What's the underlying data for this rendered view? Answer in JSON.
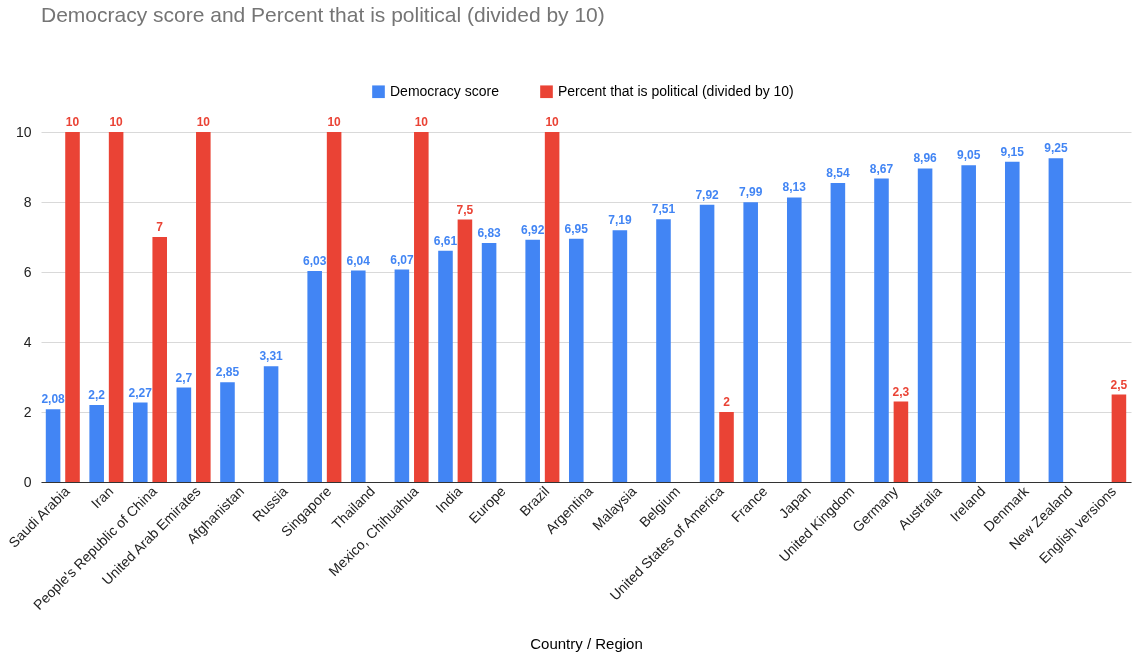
{
  "chart_data": {
    "type": "bar",
    "title": "Democracy score and Percent that is political (divided by 10)",
    "xlabel": "Country / Region",
    "categories": [
      "Saudi Arabia",
      "Iran",
      "People's Republic of China",
      "United Arab Emirates",
      "Afghanistan",
      "Russia",
      "Singapore",
      "Thailand",
      "Mexico, Chihuahua",
      "India",
      "Europe",
      "Brazil",
      "Argentina",
      "Malaysia",
      "Belgium",
      "United States of America",
      "France",
      "Japan",
      "United Kingdom",
      "Germany",
      "Australia",
      "Ireland",
      "Denmark",
      "New Zealand",
      "English versions"
    ],
    "series": [
      {
        "name": "Democracy score",
        "color": "#4285f4",
        "values": [
          2.08,
          2.2,
          2.27,
          2.7,
          2.85,
          3.31,
          6.03,
          6.04,
          6.07,
          6.61,
          6.83,
          6.92,
          6.95,
          7.19,
          7.51,
          7.92,
          7.99,
          8.13,
          8.54,
          8.67,
          8.96,
          9.05,
          9.15,
          9.25,
          null
        ],
        "value_labels": [
          "2,08",
          "2,2",
          "2,27",
          "2,7",
          "2,85",
          "3,31",
          "6,03",
          "6,04",
          "6,07",
          "6,61",
          "6,83",
          "6,92",
          "6,95",
          "7,19",
          "7,51",
          "7,92",
          "7,99",
          "8,13",
          "8,54",
          "8,67",
          "8,96",
          "9,05",
          "9,15",
          "9,25",
          null
        ]
      },
      {
        "name": "Percent that is political (divided by 10)",
        "color": "#ea4335",
        "values": [
          10,
          10,
          7,
          10,
          null,
          null,
          10,
          null,
          10,
          7.5,
          null,
          10,
          null,
          null,
          null,
          2,
          null,
          null,
          null,
          2.3,
          null,
          null,
          null,
          null,
          2.5
        ],
        "value_labels": [
          "10",
          "10",
          "7",
          "10",
          null,
          null,
          "10",
          null,
          "10",
          "7,5",
          null,
          "10",
          null,
          null,
          null,
          "2",
          null,
          null,
          null,
          "2,3",
          null,
          null,
          null,
          null,
          "2,5"
        ]
      }
    ],
    "ylim": [
      0,
      10
    ],
    "yticks": [
      0,
      2,
      4,
      6,
      8,
      10
    ],
    "grid": "y",
    "legend": "top"
  }
}
